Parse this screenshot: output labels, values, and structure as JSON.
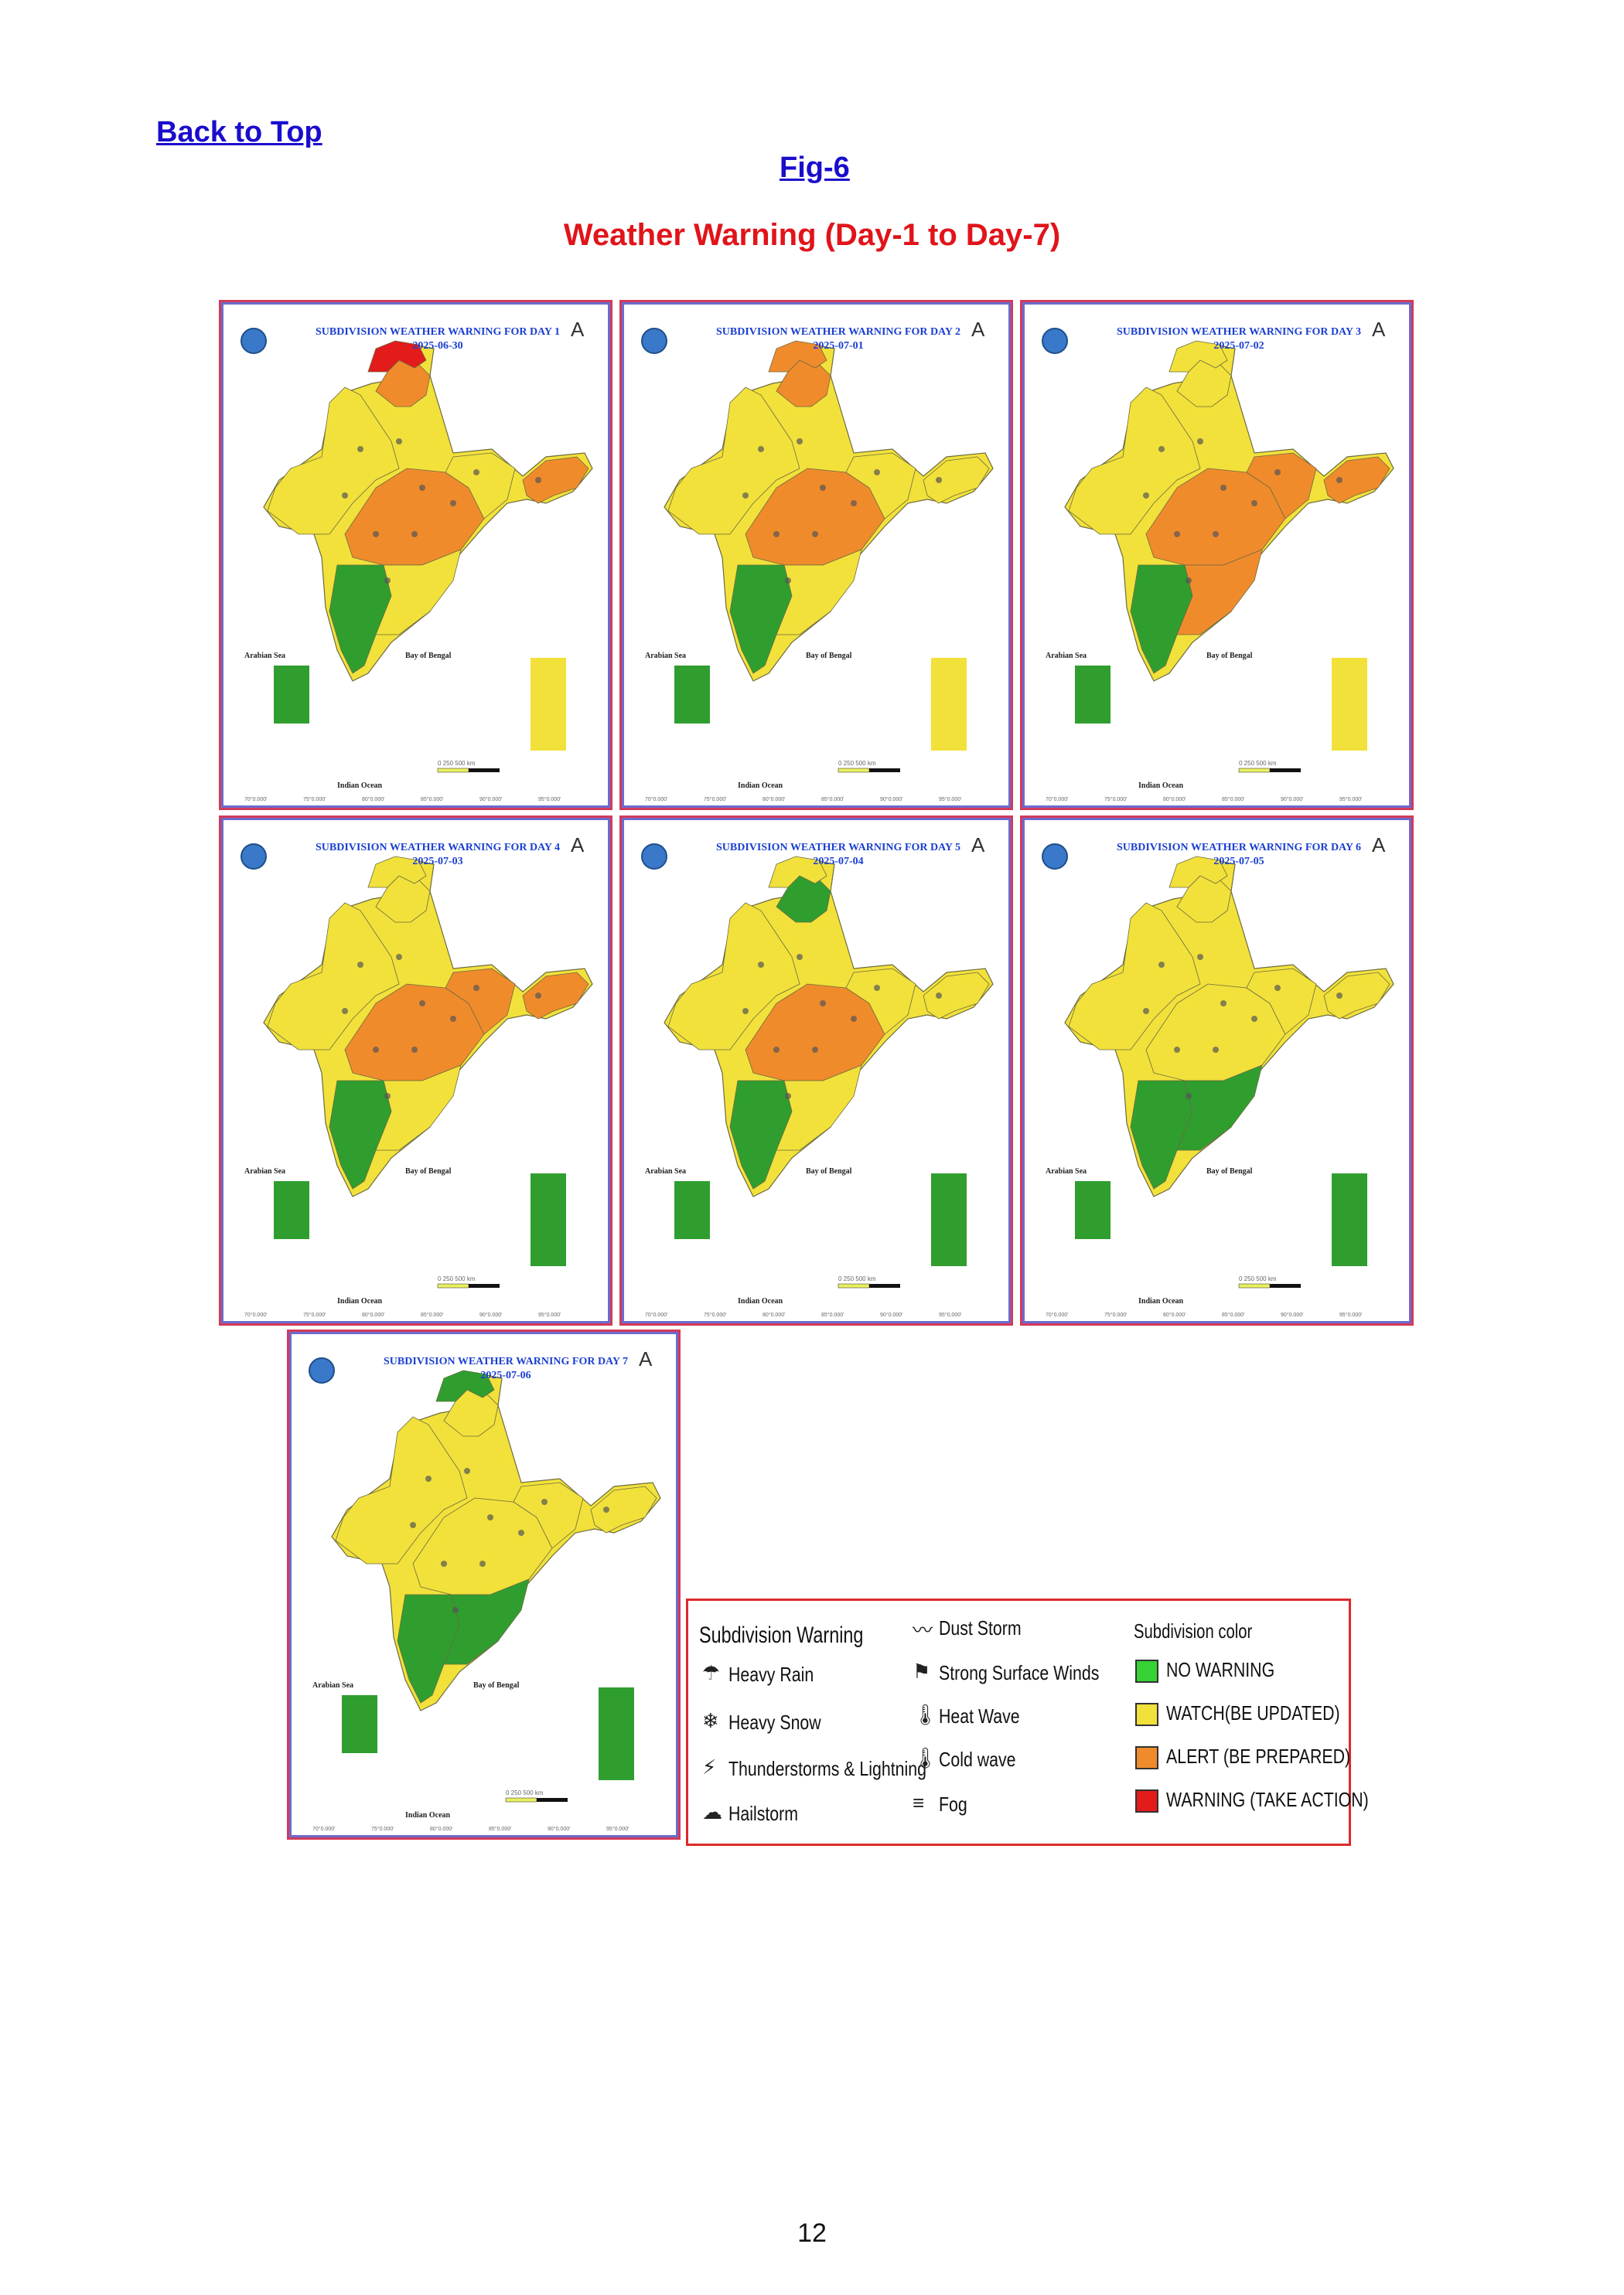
{
  "header": {
    "back_to_top": "Back to Top",
    "fig_label": "Fig-6",
    "title": "Weather Warning (Day-1 to Day-7)"
  },
  "colors": {
    "no_warning": "#35d135",
    "watch": "#f2e13a",
    "alert": "#f08b2c",
    "warning": "#e31b1b",
    "green_fill": "#2f9e2f"
  },
  "maps": [
    {
      "title": "SUBDIVISION WEATHER WARNING FOR DAY 1",
      "date": "2025-06-30",
      "zones": [
        "watch",
        "alert",
        "warning",
        "alert",
        "watch",
        "green",
        "watch",
        "alert"
      ],
      "island_fill": "watch"
    },
    {
      "title": "SUBDIVISION WEATHER WARNING FOR DAY 2",
      "date": "2025-07-01",
      "zones": [
        "watch",
        "alert",
        "alert",
        "alert",
        "watch",
        "green",
        "watch",
        "watch"
      ],
      "island_fill": "watch"
    },
    {
      "title": "SUBDIVISION WEATHER WARNING FOR DAY 3",
      "date": "2025-07-02",
      "zones": [
        "watch",
        "watch",
        "watch",
        "alert",
        "alert",
        "green",
        "alert",
        "alert"
      ],
      "island_fill": "watch"
    },
    {
      "title": "SUBDIVISION WEATHER WARNING FOR DAY 4",
      "date": "2025-07-03",
      "zones": [
        "watch",
        "watch",
        "watch",
        "alert",
        "alert",
        "green",
        "watch",
        "alert"
      ],
      "island_fill": "green"
    },
    {
      "title": "SUBDIVISION WEATHER WARNING FOR DAY 5",
      "date": "2025-07-04",
      "zones": [
        "watch",
        "green",
        "watch",
        "alert",
        "watch",
        "green",
        "watch",
        "watch"
      ],
      "island_fill": "green"
    },
    {
      "title": "SUBDIVISION WEATHER WARNING FOR DAY 6",
      "date": "2025-07-05",
      "zones": [
        "watch",
        "watch",
        "watch",
        "watch",
        "watch",
        "green",
        "green",
        "watch"
      ],
      "island_fill": "green"
    },
    {
      "title": "SUBDIVISION WEATHER WARNING FOR DAY 7",
      "date": "2025-07-06",
      "zones": [
        "watch",
        "watch",
        "green",
        "watch",
        "watch",
        "green",
        "green",
        "watch"
      ],
      "island_fill": "green"
    }
  ],
  "map_labels": {
    "arabian_sea": "Arabian Sea",
    "bay_of_bengal": "Bay of Bengal",
    "indian_ocean": "Indian Ocean",
    "scale": "0   250   500 km",
    "lon_ticks": [
      "70°0.000'",
      "75°0.000'",
      "80°0.000'",
      "85°0.000'",
      "90°0.000'",
      "95°0.000'"
    ],
    "north": "A"
  },
  "legend": {
    "heading_left": "Subdivision Warning",
    "heading_right": "Subdivision color",
    "warnings": [
      {
        "icon": "heavy-rain-icon",
        "glyph": "☂",
        "label": "Heavy Rain"
      },
      {
        "icon": "heavy-snow-icon",
        "glyph": "❄",
        "label": "Heavy Snow"
      },
      {
        "icon": "thunderstorm-icon",
        "glyph": "⚡",
        "label": "Thunderstorms & Lightning"
      },
      {
        "icon": "hailstorm-icon",
        "glyph": "☁",
        "label": "Hailstorm"
      },
      {
        "icon": "dust-storm-icon",
        "glyph": "〰",
        "label": "Dust Storm"
      },
      {
        "icon": "surface-wind-icon",
        "glyph": "⚑",
        "label": "Strong Surface Winds"
      },
      {
        "icon": "heat-wave-icon",
        "glyph": "🌡",
        "label": "Heat Wave"
      },
      {
        "icon": "cold-wave-icon",
        "glyph": "🌡",
        "label": "Cold wave"
      },
      {
        "icon": "fog-icon",
        "glyph": "≡",
        "label": "Fog"
      }
    ],
    "colors": [
      {
        "label": "NO WARNING",
        "color": "#35d135"
      },
      {
        "label": "WATCH(BE UPDATED)",
        "color": "#f2e13a"
      },
      {
        "label": "ALERT (BE PREPARED)",
        "color": "#f08b2c"
      },
      {
        "label": "WARNING (TAKE ACTION)",
        "color": "#e31b1b"
      }
    ]
  },
  "page_number": "12"
}
